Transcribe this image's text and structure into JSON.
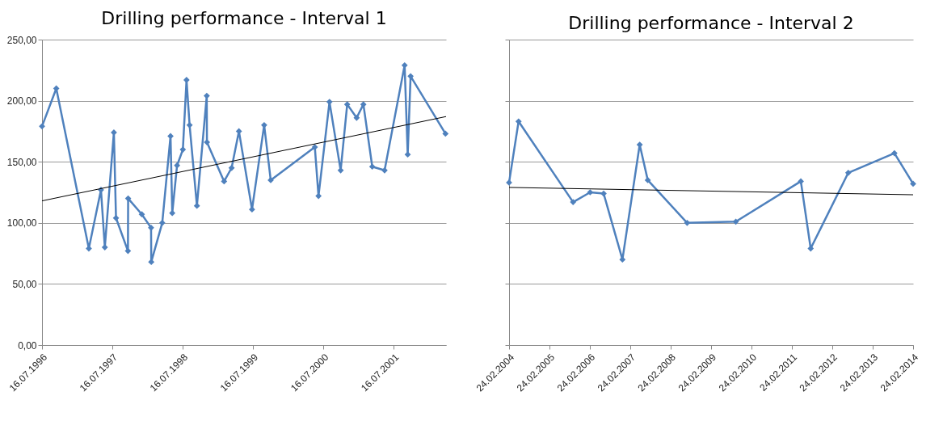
{
  "chart_data": [
    {
      "type": "line",
      "title": "Drilling performance - Interval 1",
      "marker": "diamond",
      "grid": "y",
      "xlim": [
        "1996-07-16",
        "2002-04-13"
      ],
      "xticks": [
        {
          "value": "1996-07-16",
          "label": "16.07.1996"
        },
        {
          "value": "1997-07-16",
          "label": "16.07.1997"
        },
        {
          "value": "1998-07-16",
          "label": "16.07.1998"
        },
        {
          "value": "1999-07-16",
          "label": "16.07.1999"
        },
        {
          "value": "2000-07-16",
          "label": "16.07.2000"
        },
        {
          "value": "2001-07-16",
          "label": "16.07.2001"
        }
      ],
      "ylim": [
        0,
        250
      ],
      "yticks": [
        {
          "value": 0,
          "label": "0,00"
        },
        {
          "value": 50,
          "label": "50,00"
        },
        {
          "value": 100,
          "label": "100,00"
        },
        {
          "value": 150,
          "label": "150,00"
        },
        {
          "value": 200,
          "label": "200,00"
        },
        {
          "value": 250,
          "label": "250,00"
        }
      ],
      "series": [
        {
          "color": "#4f81bd",
          "x": [
            "1996-07-16",
            "1996-09-28",
            "1997-03-16",
            "1997-05-18",
            "1997-06-07",
            "1997-07-24",
            "1997-08-04",
            "1997-10-05",
            "1997-10-06",
            "1997-12-16",
            "1998-02-02",
            "1998-02-03",
            "1998-04-01",
            "1998-05-14",
            "1998-05-23",
            "1998-06-17",
            "1998-07-17",
            "1998-08-05",
            "1998-08-21",
            "1998-09-28",
            "1998-11-18",
            "1998-11-19",
            "1999-02-16",
            "1999-03-27",
            "1999-05-04",
            "1999-07-11",
            "1999-09-12",
            "1999-10-16",
            "2000-06-01",
            "2000-06-20",
            "2000-08-16",
            "2000-10-13",
            "2000-11-16",
            "2001-01-04",
            "2001-02-08",
            "2001-03-26",
            "2001-05-29",
            "2001-09-10",
            "2001-09-26",
            "2001-10-11",
            "2002-04-10"
          ],
          "values": [
            179,
            210,
            79,
            127,
            80,
            174,
            104,
            77,
            120,
            107,
            96,
            68,
            100,
            171,
            108,
            147,
            160,
            217,
            180,
            114,
            204,
            166,
            134,
            145,
            175,
            111,
            180,
            135,
            162,
            122,
            199,
            143,
            197,
            186,
            197,
            146,
            143,
            229,
            156,
            220,
            173
          ]
        },
        {
          "color": "#000000",
          "marker": "none",
          "x": [
            "1996-07-16",
            "2002-04-13"
          ],
          "values": [
            118,
            187
          ]
        }
      ]
    },
    {
      "type": "line",
      "title": "Drilling performance - Interval 2",
      "marker": "diamond",
      "grid": "y",
      "tick_labels": "x",
      "xlim": [
        "2004-02-24",
        "2014-02-24"
      ],
      "xticks": [
        {
          "value": "2004-02-24",
          "label": "24.02.2004"
        },
        {
          "value": "2005-02-24",
          "label": "24.02.2005"
        },
        {
          "value": "2006-02-24",
          "label": "24.02.2006"
        },
        {
          "value": "2007-02-24",
          "label": "24.02.2007"
        },
        {
          "value": "2008-02-24",
          "label": "24.02.2008"
        },
        {
          "value": "2009-02-24",
          "label": "24.02.2009"
        },
        {
          "value": "2010-02-24",
          "label": "24.02.2010"
        },
        {
          "value": "2011-02-24",
          "label": "24.02.2011"
        },
        {
          "value": "2012-02-24",
          "label": "24.02.2012"
        },
        {
          "value": "2013-02-24",
          "label": "24.02.2013"
        },
        {
          "value": "2014-02-24",
          "label": "24.02.2014"
        }
      ],
      "ylim": [
        0,
        250
      ],
      "yticks": [
        0,
        50,
        100,
        150,
        200,
        250
      ],
      "series": [
        {
          "color": "#4f81bd",
          "x": [
            "2004-02-24",
            "2004-05-20",
            "2005-09-25",
            "2006-02-26",
            "2006-06-28",
            "2006-12-15",
            "2007-05-20",
            "2007-08-01",
            "2008-07-22",
            "2009-10-05",
            "2011-05-16",
            "2011-08-13",
            "2012-07-18",
            "2013-09-08",
            "2014-02-24"
          ],
          "values": [
            133,
            183,
            117,
            125,
            124,
            70,
            164,
            135,
            100,
            101,
            134,
            79,
            141,
            157,
            132
          ]
        },
        {
          "color": "#000000",
          "marker": "none",
          "x": [
            "2004-02-24",
            "2014-02-24"
          ],
          "values": [
            129,
            123
          ]
        }
      ]
    }
  ]
}
